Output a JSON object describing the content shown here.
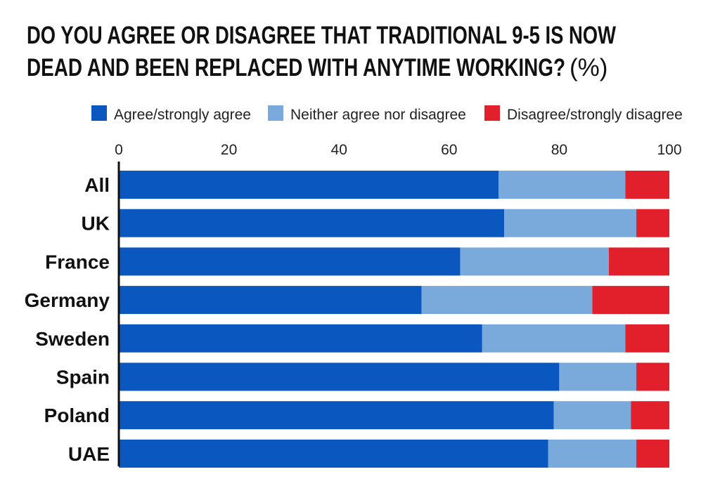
{
  "chart_data": {
    "type": "bar",
    "orientation": "horizontal",
    "stacked": true,
    "title_lines": [
      "DO YOU AGREE OR DISAGREE THAT TRADITIONAL 9-5 IS NOW",
      "DEAD AND BEEN REPLACED WITH ANYTIME WORKING?"
    ],
    "title_unit": "(%)",
    "legend_position": "top",
    "xlim": [
      0,
      100
    ],
    "ticks": [
      "0",
      "20",
      "40",
      "60",
      "80",
      "100"
    ],
    "grid": false,
    "categories": [
      "All",
      "UK",
      "France",
      "Germany",
      "Sweden",
      "Spain",
      "Poland",
      "UAE"
    ],
    "series": [
      {
        "name": "Agree/strongly agree",
        "color": "#0a57bf",
        "values": [
          69,
          70,
          62,
          55,
          66,
          80,
          79,
          78
        ]
      },
      {
        "name": "Neither agree nor disagree",
        "color": "#7aa9dc",
        "values": [
          23,
          24,
          27,
          31,
          26,
          14,
          14,
          16
        ]
      },
      {
        "name": "Disagree/strongly disagree",
        "color": "#e2202c",
        "values": [
          8,
          6,
          11,
          14,
          8,
          6,
          7,
          6
        ]
      }
    ]
  }
}
